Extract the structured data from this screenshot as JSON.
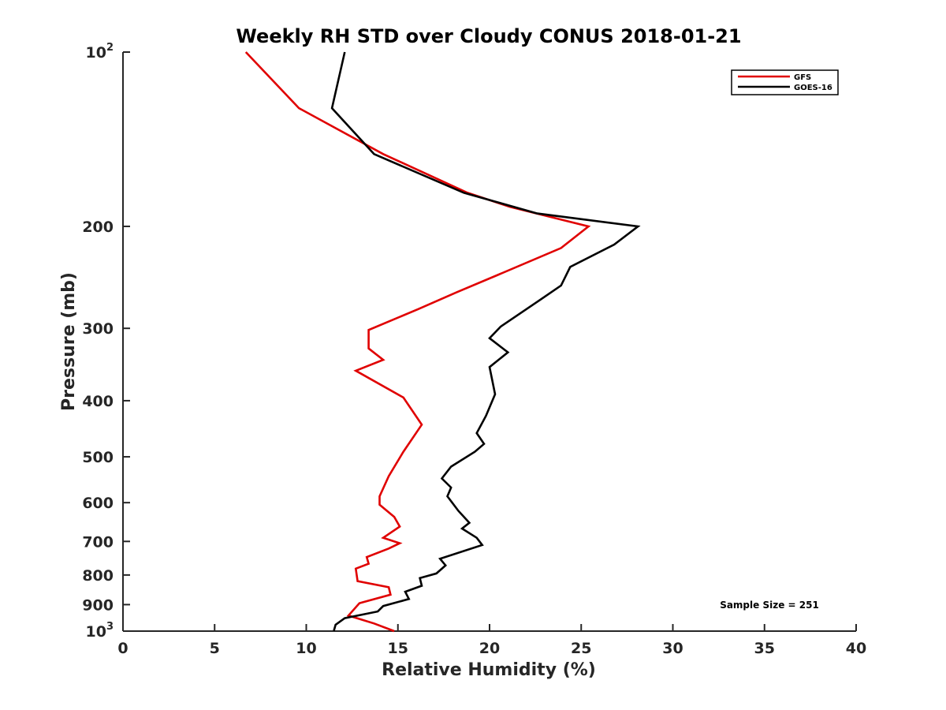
{
  "chart_data": {
    "type": "line",
    "title": "Weekly RH STD over Cloudy CONUS 2018-01-21",
    "xlabel": "Relative Humidity (%)",
    "ylabel": "Pressure (mb)",
    "xlim": [
      0,
      40
    ],
    "ylim": [
      100,
      1000
    ],
    "y_scale": "log",
    "y_reversed": true,
    "x_ticks": [
      "0",
      "5",
      "10",
      "15",
      "20",
      "25",
      "30",
      "35",
      "40"
    ],
    "y_ticks": [
      {
        "value": 100,
        "base": "10",
        "exp": "2"
      },
      {
        "value": 200,
        "base": "200",
        "exp": ""
      },
      {
        "value": 300,
        "base": "300",
        "exp": ""
      },
      {
        "value": 400,
        "base": "400",
        "exp": ""
      },
      {
        "value": 500,
        "base": "500",
        "exp": ""
      },
      {
        "value": 600,
        "base": "600",
        "exp": ""
      },
      {
        "value": 700,
        "base": "700",
        "exp": ""
      },
      {
        "value": 800,
        "base": "800",
        "exp": ""
      },
      {
        "value": 900,
        "base": "900",
        "exp": ""
      },
      {
        "value": 1000,
        "base": "10",
        "exp": "3"
      }
    ],
    "grid": false,
    "legend_position": "top-right",
    "annotation": "Sample Size = 251",
    "series": [
      {
        "name": "GFS",
        "color": "#e00000",
        "points": [
          [
            6.7,
            100
          ],
          [
            9.6,
            125
          ],
          [
            14.2,
            150
          ],
          [
            18.8,
            175
          ],
          [
            21.1,
            185
          ],
          [
            25.4,
            200
          ],
          [
            23.9,
            218
          ],
          [
            20.4,
            243
          ],
          [
            18.2,
            260
          ],
          [
            16.1,
            278
          ],
          [
            13.4,
            302
          ],
          [
            13.4,
            325
          ],
          [
            14.2,
            340
          ],
          [
            12.7,
            355
          ],
          [
            15.3,
            395
          ],
          [
            16.3,
            440
          ],
          [
            15.3,
            490
          ],
          [
            14.5,
            540
          ],
          [
            14.0,
            585
          ],
          [
            14.0,
            605
          ],
          [
            14.8,
            635
          ],
          [
            15.1,
            660
          ],
          [
            14.2,
            690
          ],
          [
            15.1,
            705
          ],
          [
            14.5,
            720
          ],
          [
            13.3,
            745
          ],
          [
            13.4,
            765
          ],
          [
            12.7,
            780
          ],
          [
            12.8,
            820
          ],
          [
            14.5,
            840
          ],
          [
            14.6,
            865
          ],
          [
            12.9,
            895
          ],
          [
            12.3,
            940
          ],
          [
            13.7,
            970
          ],
          [
            14.8,
            1000
          ]
        ]
      },
      {
        "name": "GOES-16",
        "color": "#000000",
        "points": [
          [
            12.1,
            100
          ],
          [
            11.4,
            125
          ],
          [
            13.7,
            150
          ],
          [
            18.6,
            175
          ],
          [
            22.6,
            190
          ],
          [
            28.1,
            200
          ],
          [
            26.8,
            215
          ],
          [
            24.4,
            235
          ],
          [
            23.9,
            253
          ],
          [
            22.6,
            270
          ],
          [
            20.6,
            298
          ],
          [
            20.0,
            312
          ],
          [
            21.0,
            330
          ],
          [
            20.0,
            350
          ],
          [
            20.3,
            390
          ],
          [
            19.8,
            425
          ],
          [
            19.3,
            455
          ],
          [
            19.7,
            475
          ],
          [
            19.2,
            490
          ],
          [
            17.9,
            520
          ],
          [
            17.4,
            545
          ],
          [
            17.9,
            565
          ],
          [
            17.7,
            585
          ],
          [
            18.3,
            620
          ],
          [
            18.9,
            650
          ],
          [
            18.5,
            665
          ],
          [
            19.3,
            690
          ],
          [
            19.6,
            710
          ],
          [
            17.3,
            750
          ],
          [
            17.6,
            770
          ],
          [
            17.1,
            795
          ],
          [
            16.2,
            810
          ],
          [
            16.3,
            835
          ],
          [
            15.4,
            855
          ],
          [
            15.6,
            880
          ],
          [
            14.2,
            905
          ],
          [
            13.9,
            925
          ],
          [
            12.1,
            950
          ],
          [
            11.6,
            975
          ],
          [
            11.5,
            1000
          ]
        ]
      }
    ]
  }
}
